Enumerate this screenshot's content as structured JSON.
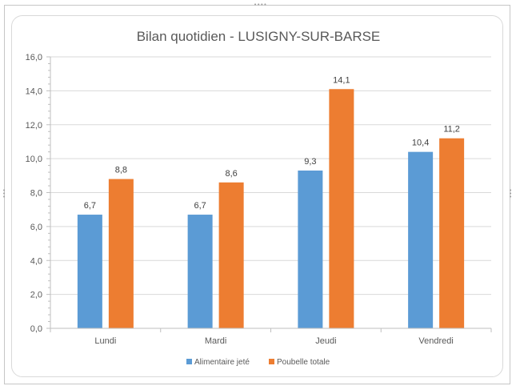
{
  "chart_data": {
    "type": "bar",
    "title": "Bilan quotidien - LUSIGNY-SUR-BARSE",
    "xlabel": "",
    "ylabel": "",
    "categories": [
      "Lundi",
      "Mardi",
      "Jeudi",
      "Vendredi"
    ],
    "series": [
      {
        "name": "Alimentaire jeté",
        "color": "#5b9bd5",
        "values": [
          6.7,
          6.7,
          9.3,
          10.4
        ],
        "labels": [
          "6,7",
          "6,7",
          "9,3",
          "10,4"
        ]
      },
      {
        "name": "Poubelle totale",
        "color": "#ed7d31",
        "values": [
          8.8,
          8.6,
          14.1,
          11.2
        ],
        "labels": [
          "8,8",
          "8,6",
          "14,1",
          "11,2"
        ]
      }
    ],
    "ylim": [
      0,
      16
    ],
    "y_ticks": [
      0,
      2,
      4,
      6,
      8,
      10,
      12,
      14,
      16
    ],
    "y_tick_labels": [
      "0,0",
      "2,0",
      "4,0",
      "6,0",
      "8,0",
      "10,0",
      "12,0",
      "14,0",
      "16,0"
    ],
    "grid": true,
    "legend_position": "bottom"
  }
}
